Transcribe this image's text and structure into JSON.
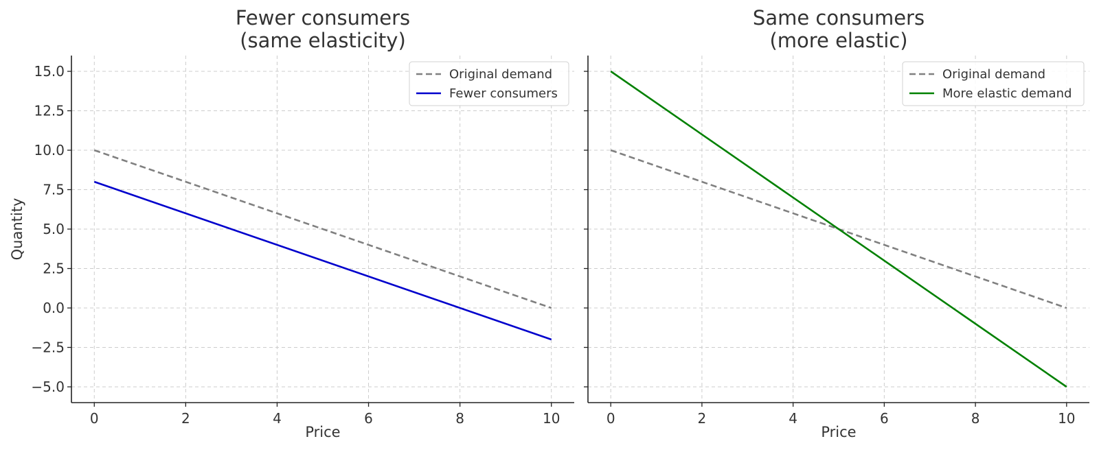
{
  "chart_data": [
    {
      "type": "line",
      "title": "Fewer consumers\n(same elasticity)",
      "xlabel": "Price",
      "ylabel": "Quantity",
      "xlim": [
        -0.5,
        10.5
      ],
      "ylim": [
        -6.0,
        16.0
      ],
      "xticks": [
        0,
        2,
        4,
        6,
        8,
        10
      ],
      "yticks": [
        -5.0,
        -2.5,
        0.0,
        2.5,
        5.0,
        7.5,
        10.0,
        12.5,
        15.0
      ],
      "xtick_labels": [
        "0",
        "2",
        "4",
        "6",
        "8",
        "10"
      ],
      "ytick_labels": [
        "−5.0",
        "−2.5",
        "0.0",
        "2.5",
        "5.0",
        "7.5",
        "10.0",
        "12.5",
        "15.0"
      ],
      "grid": true,
      "legend": "top-right",
      "series": [
        {
          "name": "Original demand",
          "color": "#808080",
          "style": "dashed",
          "x": [
            0,
            10
          ],
          "y": [
            10,
            0
          ]
        },
        {
          "name": "Fewer consumers",
          "color": "#0000cc",
          "style": "solid",
          "x": [
            0,
            10
          ],
          "y": [
            8,
            -2
          ]
        }
      ]
    },
    {
      "type": "line",
      "title": "Same consumers\n(more elastic)",
      "xlabel": "Price",
      "ylabel": "",
      "xlim": [
        -0.5,
        10.5
      ],
      "ylim": [
        -6.0,
        16.0
      ],
      "xticks": [
        0,
        2,
        4,
        6,
        8,
        10
      ],
      "yticks": [
        -5.0,
        -2.5,
        0.0,
        2.5,
        5.0,
        7.5,
        10.0,
        12.5,
        15.0
      ],
      "xtick_labels": [
        "0",
        "2",
        "4",
        "6",
        "8",
        "10"
      ],
      "ytick_labels": [],
      "grid": true,
      "legend": "top-right",
      "series": [
        {
          "name": "Original demand",
          "color": "#808080",
          "style": "dashed",
          "x": [
            0,
            10
          ],
          "y": [
            10,
            0
          ]
        },
        {
          "name": "More elastic demand",
          "color": "#008000",
          "style": "solid",
          "x": [
            0,
            10
          ],
          "y": [
            15,
            -5
          ]
        }
      ]
    }
  ]
}
